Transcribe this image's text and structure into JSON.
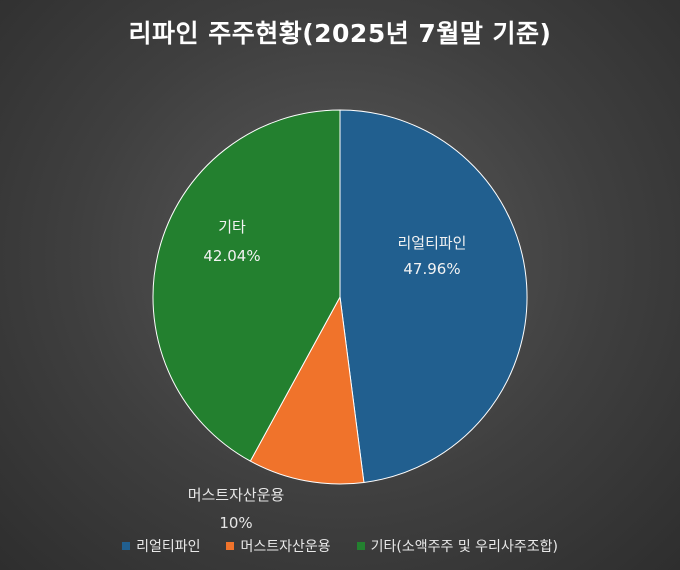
{
  "chart_data": {
    "type": "pie",
    "title": "리파인 주주현황(2025년 7월말 기준)",
    "slices": [
      {
        "label": "리얼티파인",
        "value": 47.96,
        "value_label": "47.96%",
        "legend": "리얼티파인",
        "color": "#215f8f"
      },
      {
        "label": "머스트자산운용",
        "value": 10,
        "value_label": "10%",
        "legend": "머스트자산운용",
        "color": "#f0732b"
      },
      {
        "label": "기타",
        "value": 42.04,
        "value_label": "42.04%",
        "legend": "기타(소액주주 및 우리사주조합)",
        "color": "#23802f"
      }
    ],
    "start_angle_deg": 0,
    "direction": "clockwise",
    "legend_position": "bottom"
  }
}
